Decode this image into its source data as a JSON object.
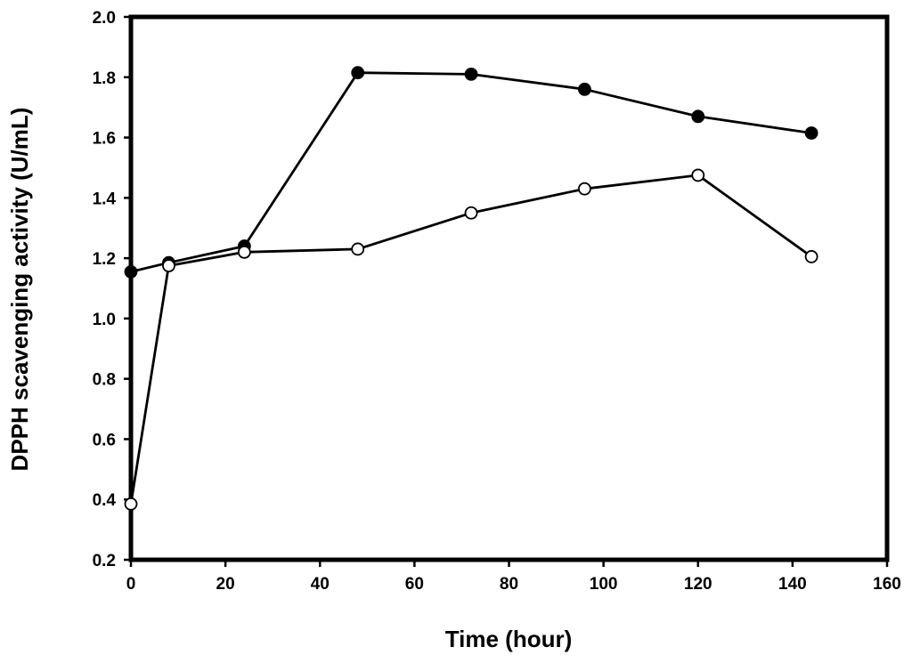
{
  "chart_data": {
    "type": "line",
    "title": "",
    "xlabel": "Time (hour)",
    "ylabel": "DPPH scavenging activity (U/mL)",
    "xlim": [
      0,
      160
    ],
    "ylim": [
      0.2,
      2.0
    ],
    "xticks": [
      0,
      20,
      40,
      60,
      80,
      100,
      120,
      140,
      160
    ],
    "yticks": [
      0.2,
      0.4,
      0.6,
      0.8,
      1.0,
      1.2,
      1.4,
      1.6,
      1.8,
      2.0
    ],
    "xtick_labels": [
      "0",
      "20",
      "40",
      "60",
      "80",
      "100",
      "120",
      "140",
      "160"
    ],
    "ytick_labels": [
      "0.2",
      "0.4",
      "0.6",
      "0.8",
      "1.0",
      "1.2",
      "1.4",
      "1.6",
      "1.8",
      "2.0"
    ],
    "grid": false,
    "legend": "none",
    "series": [
      {
        "name": "filled circles",
        "marker": "filled-circle",
        "color": "#000000",
        "x": [
          0,
          8,
          24,
          48,
          72,
          96,
          120,
          144
        ],
        "y": [
          1.155,
          1.185,
          1.24,
          1.815,
          1.81,
          1.76,
          1.67,
          1.615
        ]
      },
      {
        "name": "open circles",
        "marker": "open-circle",
        "color": "#000000",
        "x": [
          0,
          8,
          24,
          48,
          72,
          96,
          120,
          144
        ],
        "y": [
          0.385,
          1.175,
          1.22,
          1.23,
          1.35,
          1.43,
          1.475,
          1.205
        ]
      }
    ]
  }
}
